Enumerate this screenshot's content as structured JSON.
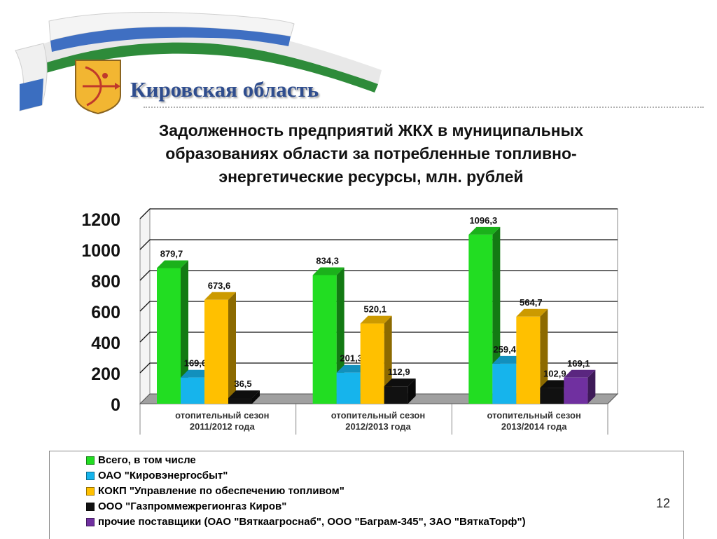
{
  "header": {
    "region_name": "Кировская область"
  },
  "slide_title": {
    "line1": "Задолженность предприятий ЖКХ в муниципальных",
    "line2": "образованиях области за потребленные топливно-",
    "line3": "энергетические ресурсы, млн. рублей"
  },
  "chart_data": {
    "type": "bar",
    "categories": [
      [
        "отопительный сезон",
        "2011/2012 года"
      ],
      [
        "отопительный сезон",
        "2012/2013 года"
      ],
      [
        "отопительный сезон",
        "2013/2014 года"
      ]
    ],
    "ylim": [
      0,
      1200
    ],
    "yticks": [
      0,
      200,
      400,
      600,
      800,
      1000,
      1200
    ],
    "grid": true,
    "legend_position": "bottom",
    "series": [
      {
        "name": "Всего, в том числе",
        "color": "#22dd22",
        "values": [
          879.7,
          834.3,
          1096.3
        ],
        "labels": [
          "879,7",
          "834,3",
          "1096,3"
        ]
      },
      {
        "name": "ОАО \"Кировэнергосбыт\"",
        "color": "#16b4ec",
        "values": [
          169.6,
          201.3,
          259.45
        ],
        "labels": [
          "169,6",
          "201,3",
          "259,45"
        ]
      },
      {
        "name": "КОКП \"Управление по обеспечению топливом\"",
        "color": "#ffc000",
        "values": [
          673.6,
          520.1,
          564.7
        ],
        "labels": [
          "673,6",
          "520,1",
          "564,7"
        ]
      },
      {
        "name": "ООО \"Газпроммежрегионгаз Киров\"",
        "color": "#111111",
        "values": [
          36.5,
          112.9,
          102.9
        ],
        "labels": [
          "36,5",
          "112,9",
          "102,9"
        ]
      },
      {
        "name": "прочие поставщики (ОАО \"Вяткаагроснаб\", ООО \"Баграм-345\", ЗАО \"ВяткаТорф\")",
        "color": "#7030a0",
        "values": [
          null,
          null,
          169.1
        ],
        "labels": [
          null,
          null,
          "169,1"
        ]
      }
    ]
  },
  "page_number": "12"
}
